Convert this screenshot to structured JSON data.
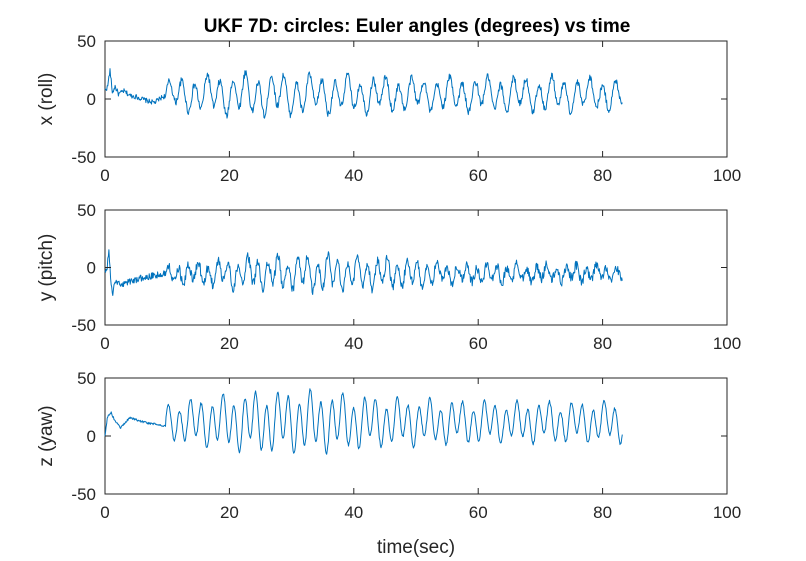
{
  "figure": {
    "title": "UKF 7D: circles: Euler angles (degrees) vs time",
    "line_color": "#0072BD",
    "axis_color": "#262626",
    "background": "#ffffff"
  },
  "chart_data": [
    {
      "type": "line",
      "panel": "top",
      "title": "UKF 7D: circles: Euler angles (degrees) vs time",
      "xlabel": "",
      "ylabel": "x (roll)",
      "xlim": [
        0,
        100
      ],
      "ylim": [
        -50,
        50
      ],
      "xticks": [
        "0",
        "20",
        "40",
        "60",
        "80",
        "100"
      ],
      "yticks": [
        "-50",
        "0",
        "50"
      ],
      "grid": false,
      "pattern": {
        "x_end": 83.2,
        "settle_end": 9.8,
        "settle_points": [
          [
            0,
            8
          ],
          [
            0.4,
            10
          ],
          [
            0.8,
            25
          ],
          [
            1.2,
            5
          ],
          [
            1.6,
            11
          ],
          [
            2.2,
            4
          ],
          [
            3,
            7
          ],
          [
            4,
            3
          ],
          [
            5,
            2
          ],
          [
            6,
            0
          ],
          [
            7,
            -2
          ],
          [
            8,
            -3
          ],
          [
            9,
            1
          ],
          [
            9.8,
            3
          ]
        ],
        "osc_period": 2.05,
        "osc_center": 4,
        "osc_amp_points": [
          [
            9.8,
            9
          ],
          [
            14,
            12
          ],
          [
            20,
            14
          ],
          [
            26,
            15
          ],
          [
            34,
            13
          ],
          [
            44,
            12
          ],
          [
            54,
            11
          ],
          [
            64,
            12
          ],
          [
            74,
            12
          ],
          [
            83.2,
            10
          ]
        ],
        "noise": 3
      }
    },
    {
      "type": "line",
      "panel": "middle",
      "xlabel": "",
      "ylabel": "y (pitch)",
      "xlim": [
        0,
        100
      ],
      "ylim": [
        -50,
        50
      ],
      "xticks": [
        "0",
        "20",
        "40",
        "60",
        "80",
        "100"
      ],
      "yticks": [
        "-50",
        "0",
        "50"
      ],
      "grid": false,
      "pattern": {
        "x_end": 83.2,
        "settle_end": 9.8,
        "settle_points": [
          [
            0,
            0
          ],
          [
            0.3,
            -5
          ],
          [
            0.6,
            16
          ],
          [
            0.9,
            -8
          ],
          [
            1.2,
            -25
          ],
          [
            1.6,
            -12
          ],
          [
            2.5,
            -15
          ],
          [
            4,
            -12
          ],
          [
            6,
            -9
          ],
          [
            8,
            -7
          ],
          [
            9.8,
            -5
          ]
        ],
        "osc_period": 1.6,
        "osc_center": -5,
        "osc_amp_points": [
          [
            9.8,
            5
          ],
          [
            20,
            10
          ],
          [
            30,
            12
          ],
          [
            36,
            13
          ],
          [
            46,
            10
          ],
          [
            56,
            7
          ],
          [
            66,
            6
          ],
          [
            76,
            6
          ],
          [
            83.2,
            5
          ]
        ],
        "noise": 4
      }
    },
    {
      "type": "line",
      "panel": "bottom",
      "xlabel": "time(sec)",
      "ylabel": "z (yaw)",
      "xlim": [
        0,
        100
      ],
      "ylim": [
        -50,
        50
      ],
      "xticks": [
        "0",
        "20",
        "40",
        "60",
        "80",
        "100"
      ],
      "yticks": [
        "-50",
        "0",
        "50"
      ],
      "grid": false,
      "pattern": {
        "x_end": 83.2,
        "settle_end": 9.8,
        "settle_points": [
          [
            0,
            0
          ],
          [
            0.4,
            17
          ],
          [
            1,
            20
          ],
          [
            1.6,
            13
          ],
          [
            2.5,
            7
          ],
          [
            4,
            16
          ],
          [
            5.5,
            13
          ],
          [
            7,
            11
          ],
          [
            8.5,
            10
          ],
          [
            9.8,
            8
          ]
        ],
        "osc_period": 1.75,
        "osc_center": 12,
        "osc_amp_points": [
          [
            9.8,
            12
          ],
          [
            16,
            17
          ],
          [
            24,
            21
          ],
          [
            34,
            21
          ],
          [
            44,
            17
          ],
          [
            54,
            15
          ],
          [
            64,
            14
          ],
          [
            74,
            14
          ],
          [
            83.2,
            14
          ]
        ],
        "noise": 1.2
      }
    }
  ]
}
